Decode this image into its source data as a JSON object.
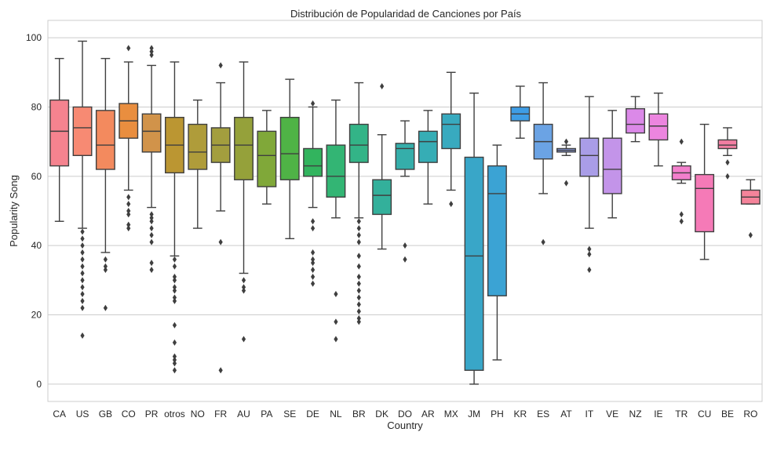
{
  "chart_data": {
    "type": "box",
    "title": "Distribución de Popularidad de Canciones por País",
    "xlabel": "Country",
    "ylabel": "Popularity Song",
    "ylim": [
      -5,
      105
    ],
    "yticks": [
      0,
      20,
      40,
      60,
      80,
      100
    ],
    "grid": "horizontal",
    "categories": [
      "CA",
      "US",
      "GB",
      "CO",
      "PR",
      "otros",
      "NO",
      "FR",
      "AU",
      "PA",
      "SE",
      "DE",
      "NL",
      "BR",
      "DK",
      "DO",
      "AR",
      "MX",
      "JM",
      "PH",
      "KR",
      "ES",
      "AT",
      "IT",
      "VE",
      "NZ",
      "IE",
      "TR",
      "CU",
      "BE",
      "RO"
    ],
    "colors": [
      "#f5838f",
      "#f78a73",
      "#f38a5e",
      "#e98e3f",
      "#d1934a",
      "#bb9632",
      "#af9c3a",
      "#a39e3e",
      "#95a13a",
      "#80a839",
      "#4fb346",
      "#32b45e",
      "#33b574",
      "#33b487",
      "#33b09b",
      "#35aeaa",
      "#36adb5",
      "#38aabf",
      "#39a6c8",
      "#3ba3d4",
      "#3e9de5",
      "#6ba3e4",
      "#8da1e8",
      "#a99de7",
      "#c394e9",
      "#db89e8",
      "#ec85df",
      "#f37fcc",
      "#f57ab7",
      "#f27ea2",
      "#f5839a"
    ],
    "boxes": [
      {
        "q1": 63,
        "median": 73,
        "q3": 82,
        "whisker_low": 47,
        "whisker_high": 94,
        "outliers": []
      },
      {
        "q1": 66,
        "median": 74,
        "q3": 80,
        "whisker_low": 45,
        "whisker_high": 99,
        "outliers": [
          14,
          22,
          24,
          26,
          28,
          30,
          32,
          34,
          36,
          38,
          40,
          42,
          44
        ]
      },
      {
        "q1": 62,
        "median": 69,
        "q3": 79,
        "whisker_low": 38,
        "whisker_high": 94,
        "outliers": [
          22,
          33,
          34,
          36
        ]
      },
      {
        "q1": 71,
        "median": 76,
        "q3": 81,
        "whisker_low": 56,
        "whisker_high": 93,
        "outliers": [
          45,
          46,
          49,
          50,
          52,
          54,
          97
        ]
      },
      {
        "q1": 67,
        "median": 73,
        "q3": 78,
        "whisker_low": 51,
        "whisker_high": 92,
        "outliers": [
          33,
          35,
          41,
          43,
          45,
          47,
          48,
          49,
          95,
          96,
          97
        ]
      },
      {
        "q1": 61,
        "median": 69,
        "q3": 77,
        "whisker_low": 37,
        "whisker_high": 93,
        "outliers": [
          4,
          6,
          7,
          8,
          12,
          17,
          24,
          25,
          27,
          28,
          30,
          31,
          34,
          36
        ]
      },
      {
        "q1": 62,
        "median": 67,
        "q3": 75,
        "whisker_low": 45,
        "whisker_high": 82,
        "outliers": []
      },
      {
        "q1": 64,
        "median": 69,
        "q3": 74,
        "whisker_low": 50,
        "whisker_high": 87,
        "outliers": [
          4,
          41,
          92
        ]
      },
      {
        "q1": 59,
        "median": 69,
        "q3": 77,
        "whisker_low": 32,
        "whisker_high": 93,
        "outliers": [
          13,
          27,
          28,
          30
        ]
      },
      {
        "q1": 57,
        "median": 66,
        "q3": 73,
        "whisker_low": 52,
        "whisker_high": 79,
        "outliers": []
      },
      {
        "q1": 59,
        "median": 66.5,
        "q3": 77,
        "whisker_low": 42,
        "whisker_high": 88,
        "outliers": []
      },
      {
        "q1": 60,
        "median": 63,
        "q3": 68,
        "whisker_low": 51,
        "whisker_high": 80,
        "outliers": [
          29,
          31,
          33,
          35,
          36,
          38,
          45,
          47,
          81
        ]
      },
      {
        "q1": 54,
        "median": 60,
        "q3": 69,
        "whisker_low": 48,
        "whisker_high": 82,
        "outliers": [
          13,
          18,
          26
        ]
      },
      {
        "q1": 64,
        "median": 69,
        "q3": 75,
        "whisker_low": 48,
        "whisker_high": 87,
        "outliers": [
          18,
          19,
          21,
          23,
          25,
          27,
          29,
          31,
          34,
          37,
          41,
          43,
          45,
          47
        ]
      },
      {
        "q1": 49,
        "median": 54.5,
        "q3": 59,
        "whisker_low": 39,
        "whisker_high": 72,
        "outliers": [
          86
        ]
      },
      {
        "q1": 62,
        "median": 68,
        "q3": 69.5,
        "whisker_low": 60,
        "whisker_high": 76,
        "outliers": [
          36,
          40
        ]
      },
      {
        "q1": 64,
        "median": 70,
        "q3": 73,
        "whisker_low": 52,
        "whisker_high": 79,
        "outliers": []
      },
      {
        "q1": 68,
        "median": 75,
        "q3": 78,
        "whisker_low": 56,
        "whisker_high": 90,
        "outliers": [
          52
        ]
      },
      {
        "q1": 4,
        "median": 37,
        "q3": 65.5,
        "whisker_low": 0,
        "whisker_high": 84,
        "outliers": []
      },
      {
        "q1": 25.5,
        "median": 55,
        "q3": 63,
        "whisker_low": 7,
        "whisker_high": 69,
        "outliers": []
      },
      {
        "q1": 76,
        "median": 78,
        "q3": 80,
        "whisker_low": 71,
        "whisker_high": 86,
        "outliers": []
      },
      {
        "q1": 65,
        "median": 70,
        "q3": 75,
        "whisker_low": 55,
        "whisker_high": 87,
        "outliers": [
          41
        ]
      },
      {
        "q1": 67,
        "median": 67.5,
        "q3": 68,
        "whisker_low": 66,
        "whisker_high": 69,
        "outliers": [
          58,
          70
        ]
      },
      {
        "q1": 60,
        "median": 66,
        "q3": 71,
        "whisker_low": 45,
        "whisker_high": 83,
        "outliers": [
          33,
          37.5,
          39
        ]
      },
      {
        "q1": 55,
        "median": 62,
        "q3": 71,
        "whisker_low": 48,
        "whisker_high": 79,
        "outliers": []
      },
      {
        "q1": 72.5,
        "median": 75,
        "q3": 79.5,
        "whisker_low": 70,
        "whisker_high": 83,
        "outliers": []
      },
      {
        "q1": 70.5,
        "median": 74.5,
        "q3": 78,
        "whisker_low": 63,
        "whisker_high": 84,
        "outliers": []
      },
      {
        "q1": 59,
        "median": 61,
        "q3": 63,
        "whisker_low": 58,
        "whisker_high": 64,
        "outliers": [
          47,
          49,
          70
        ]
      },
      {
        "q1": 44,
        "median": 56.5,
        "q3": 60.5,
        "whisker_low": 36,
        "whisker_high": 75,
        "outliers": []
      },
      {
        "q1": 68,
        "median": 69,
        "q3": 70.5,
        "whisker_low": 66,
        "whisker_high": 74,
        "outliers": [
          60,
          64
        ]
      },
      {
        "q1": 52,
        "median": 54,
        "q3": 56,
        "whisker_low": 52,
        "whisker_high": 59,
        "outliers": [
          43
        ]
      }
    ]
  }
}
